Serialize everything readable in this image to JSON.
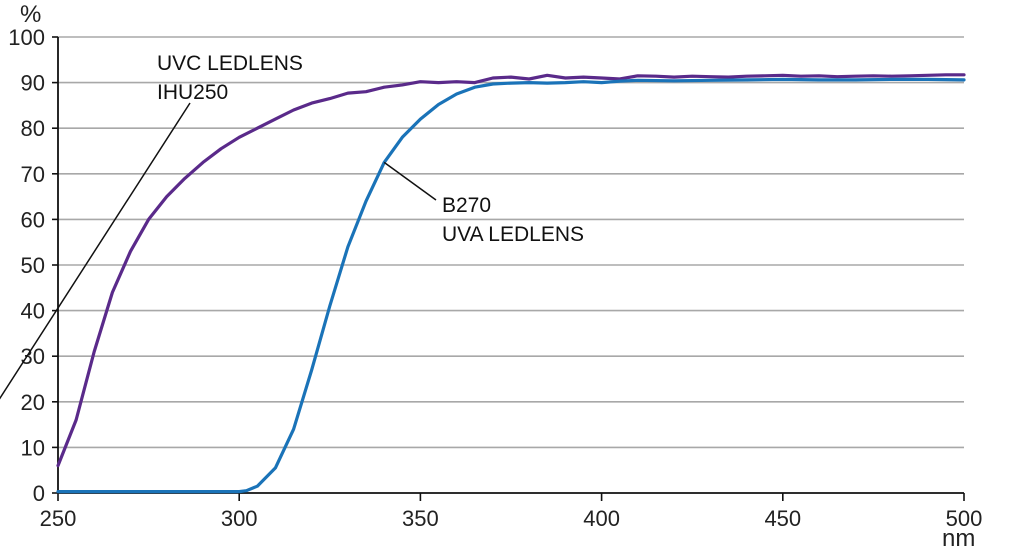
{
  "chart_data": {
    "type": "line",
    "xlabel": "nm",
    "ylabel": "%",
    "xlim": [
      250,
      500
    ],
    "ylim": [
      0,
      100
    ],
    "x_ticks": [
      250,
      300,
      350,
      400,
      450,
      500
    ],
    "y_ticks": [
      0,
      10,
      20,
      30,
      40,
      50,
      60,
      70,
      80,
      90,
      100
    ],
    "grid": true,
    "series": [
      {
        "name": "UVC LEDLENS IHU250",
        "label_lines": [
          "UVC LEDLENS",
          "IHU250"
        ],
        "color": "#5a2a8a",
        "x": [
          250,
          255,
          260,
          265,
          270,
          275,
          280,
          285,
          290,
          295,
          300,
          305,
          310,
          315,
          320,
          325,
          330,
          335,
          340,
          345,
          350,
          355,
          360,
          365,
          370,
          375,
          380,
          385,
          390,
          395,
          400,
          405,
          410,
          415,
          420,
          425,
          430,
          435,
          440,
          445,
          450,
          455,
          460,
          465,
          470,
          475,
          480,
          485,
          490,
          495,
          500
        ],
        "y": [
          6,
          16,
          31,
          44,
          53,
          60,
          65,
          69,
          72.5,
          75.5,
          78,
          80,
          82,
          84,
          85.5,
          86.5,
          87.7,
          88,
          89,
          89.5,
          90.2,
          90,
          90.2,
          90,
          91,
          91.2,
          90.8,
          91.6,
          91,
          91.2,
          91,
          90.8,
          91.5,
          91.4,
          91.2,
          91.4,
          91.3,
          91.2,
          91.4,
          91.5,
          91.6,
          91.4,
          91.5,
          91.3,
          91.4,
          91.5,
          91.4,
          91.5,
          91.6,
          91.7,
          91.7
        ]
      },
      {
        "name": "B270 UVA LEDLENS",
        "label_lines": [
          "B270",
          "UVA LEDLENS"
        ],
        "color": "#1a73b8",
        "x": [
          250,
          260,
          270,
          280,
          290,
          300,
          302,
          305,
          310,
          315,
          320,
          325,
          330,
          335,
          340,
          345,
          350,
          355,
          360,
          365,
          370,
          375,
          380,
          385,
          390,
          395,
          400,
          405,
          410,
          420,
          430,
          440,
          450,
          460,
          470,
          480,
          490,
          500
        ],
        "y": [
          0.3,
          0.3,
          0.3,
          0.3,
          0.3,
          0.3,
          0.5,
          1.5,
          5.5,
          14,
          27,
          41,
          54,
          64,
          72.5,
          78,
          82,
          85.2,
          87.5,
          89,
          89.7,
          89.9,
          90,
          89.9,
          90,
          90.2,
          90,
          90.3,
          90.5,
          90.4,
          90.5,
          90.6,
          90.7,
          90.6,
          90.6,
          90.7,
          90.7,
          90.6
        ]
      }
    ]
  }
}
